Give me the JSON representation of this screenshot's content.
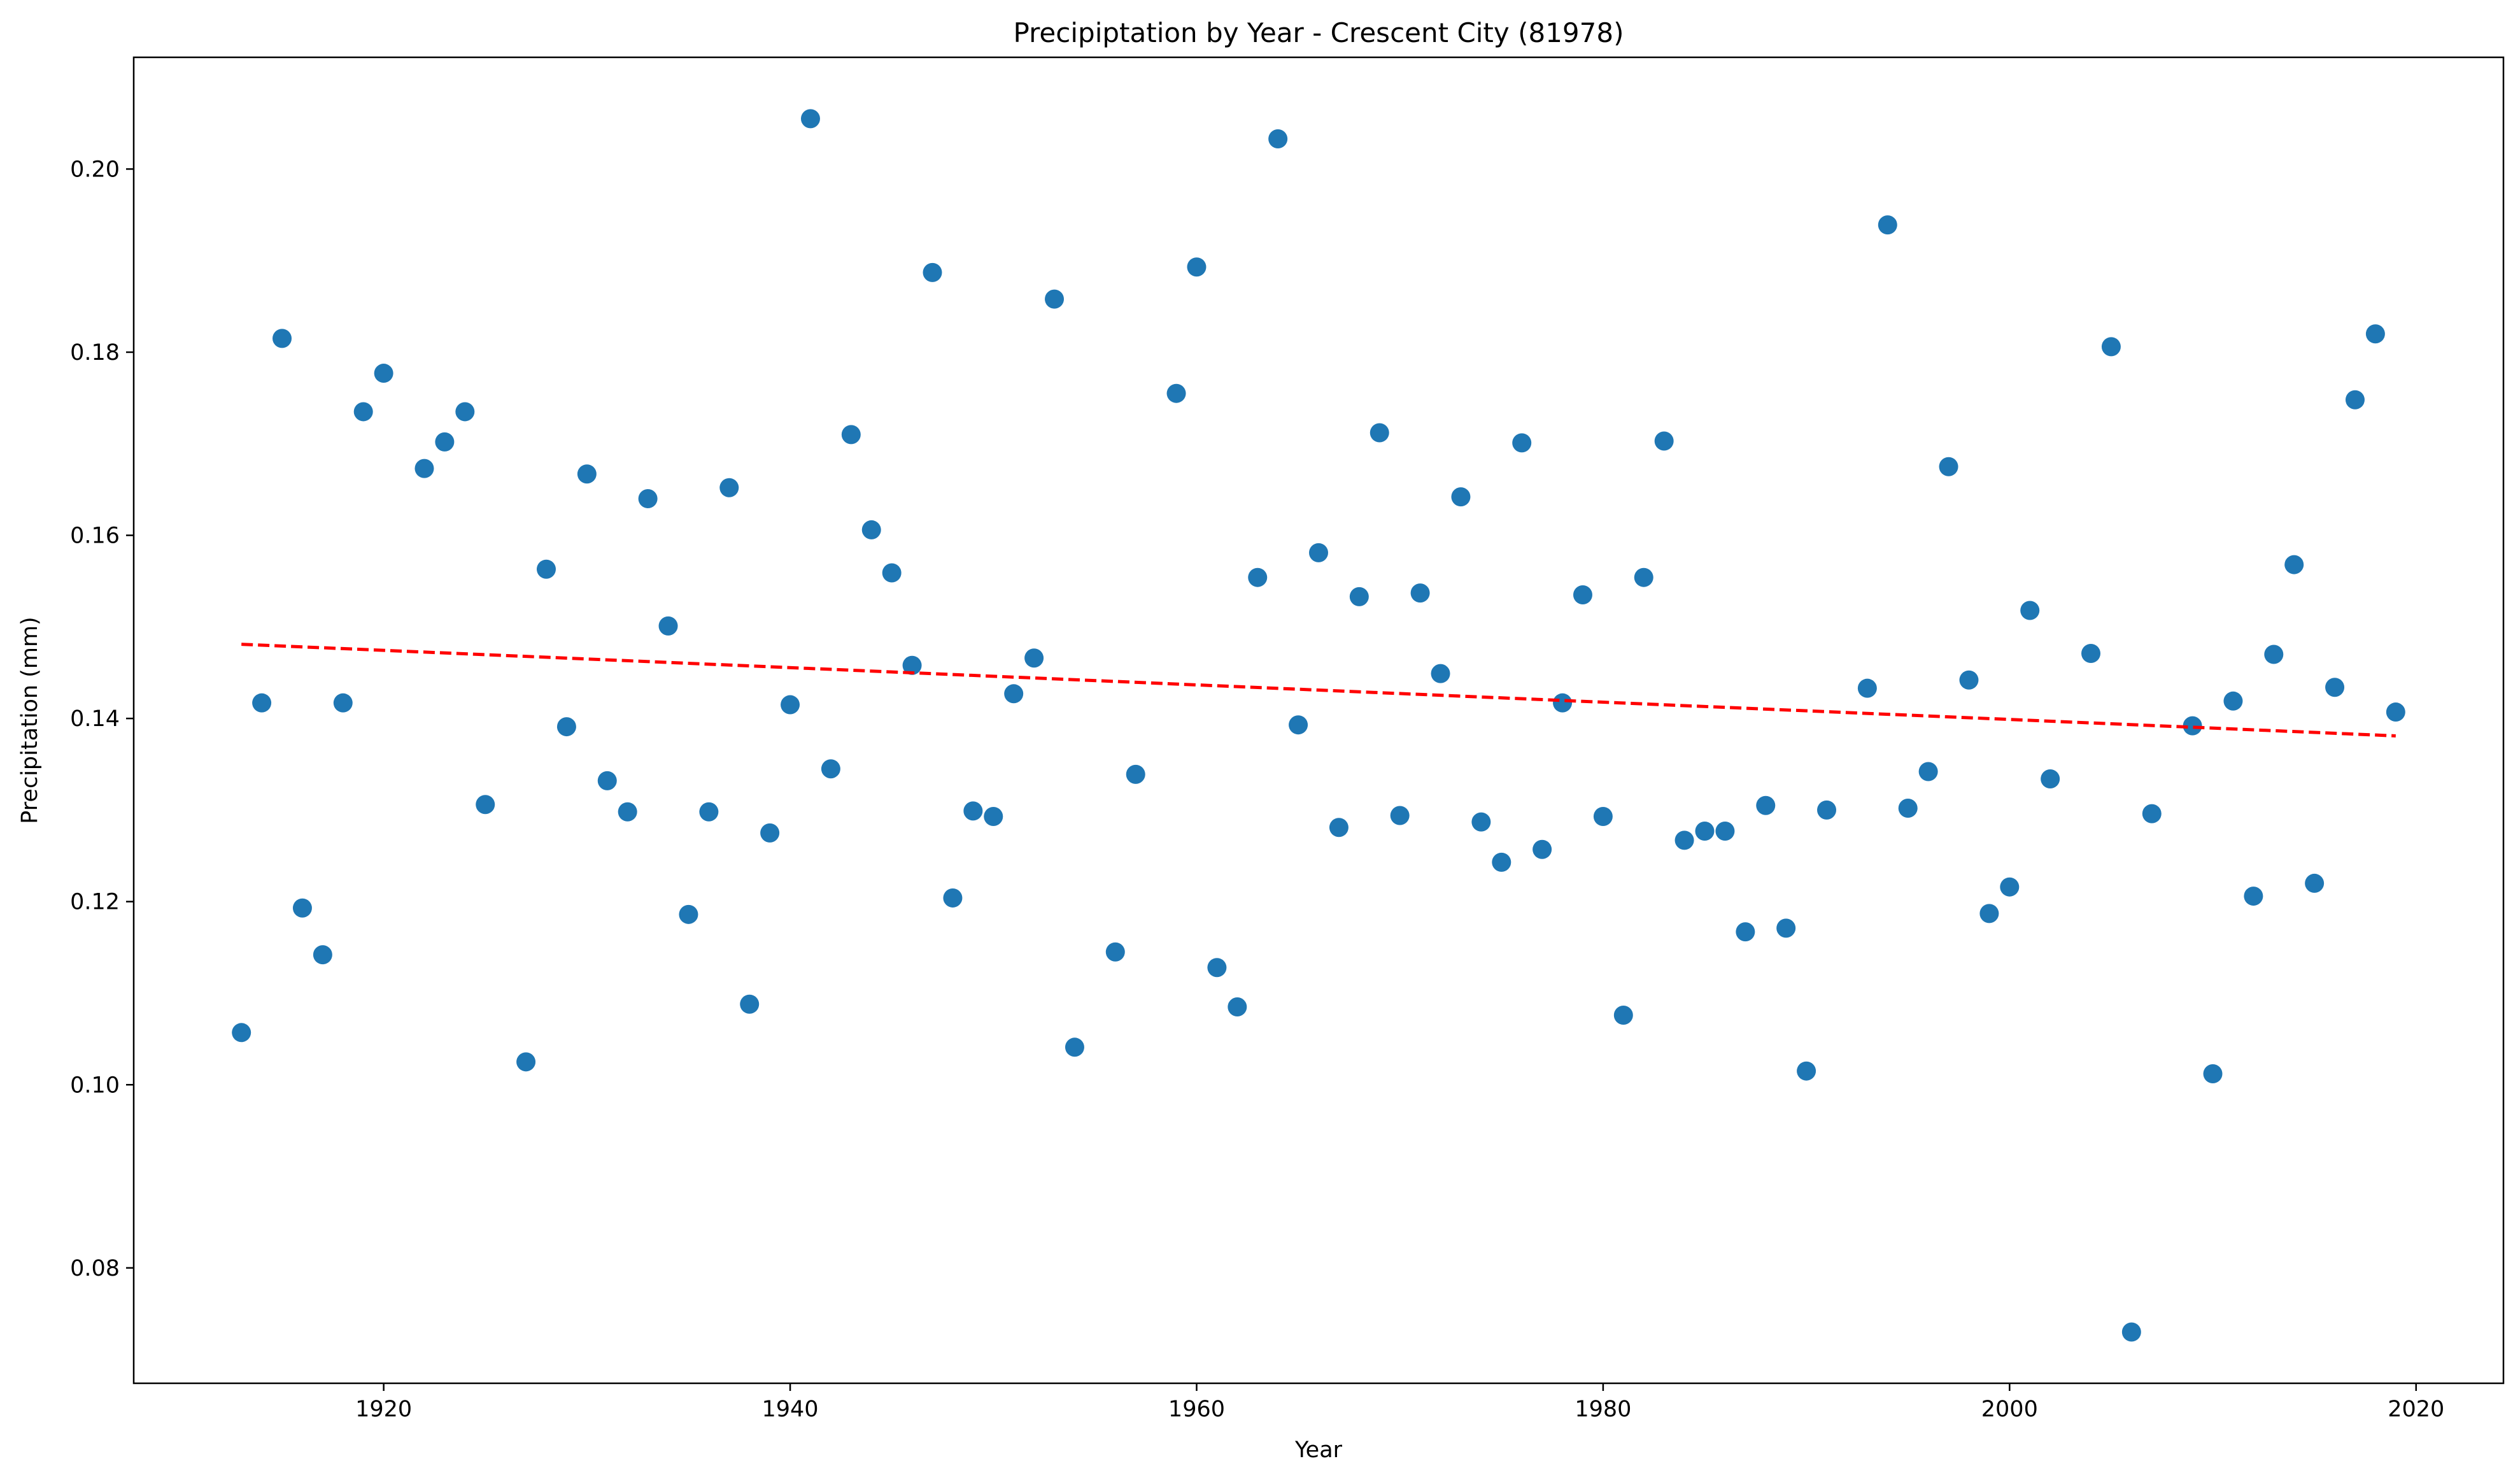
{
  "chart_data": {
    "type": "scatter",
    "title": "Precipiptation by Year - Crescent City (81978)",
    "xlabel": "Year",
    "ylabel": "Precipitation (mm)",
    "xlim": [
      1907.7,
      2024.3
    ],
    "ylim": [
      0.0674,
      0.2122
    ],
    "xticks": [
      1920,
      1940,
      1960,
      1980,
      2000,
      2020
    ],
    "xtick_labels": [
      "1920",
      "1940",
      "1960",
      "1980",
      "2000",
      "2020"
    ],
    "yticks": [
      0.08,
      0.1,
      0.12,
      0.14,
      0.16,
      0.18,
      0.2
    ],
    "ytick_labels": [
      "0.08",
      "0.10",
      "0.12",
      "0.14",
      "0.16",
      "0.18",
      "0.20"
    ],
    "grid": false,
    "colors": {
      "points": "#1f77b4",
      "trend": "#ff0000"
    },
    "series": [
      {
        "x": [
          1913,
          1914,
          1915,
          1916,
          1917,
          1918,
          1919,
          1920,
          1922,
          1923,
          1924,
          1925,
          1927,
          1928,
          1929,
          1930,
          1931,
          1932,
          1933,
          1934,
          1935,
          1936,
          1937,
          1938,
          1939,
          1940,
          1941,
          1942,
          1943,
          1944,
          1945,
          1946,
          1947,
          1948,
          1949,
          1950,
          1951,
          1952,
          1953,
          1954,
          1956,
          1957,
          1959,
          1960,
          1961,
          1962,
          1963,
          1964,
          1965,
          1966,
          1967,
          1968,
          1969,
          1970,
          1971,
          1972,
          1973,
          1974,
          1975,
          1976,
          1977,
          1978,
          1979,
          1980,
          1981,
          1982,
          1983,
          1984,
          1985,
          1986,
          1987,
          1988,
          1989,
          1990,
          1991,
          1993,
          1994,
          1995,
          1996,
          1997,
          1998,
          1999,
          2000,
          2001,
          2002,
          2004,
          2005,
          2006,
          2007,
          2009,
          2010,
          2011,
          2012,
          2013,
          2014,
          2015,
          2016,
          2017,
          2018,
          2019
        ],
        "y": [
          0.1057,
          0.1417,
          0.1815,
          0.1193,
          0.1142,
          0.1417,
          0.1735,
          0.1777,
          0.1673,
          0.1702,
          0.1735,
          0.1306,
          0.1025,
          0.1563,
          0.1391,
          0.1667,
          0.1332,
          0.1298,
          0.164,
          0.1501,
          0.1186,
          0.1298,
          0.1652,
          0.1088,
          0.1275,
          0.1415,
          0.2055,
          0.1345,
          0.171,
          0.1606,
          0.1559,
          0.1458,
          0.1887,
          0.1204,
          0.1299,
          0.1293,
          0.1427,
          0.1466,
          0.1858,
          0.1041,
          0.1145,
          0.1339,
          0.1755,
          0.1893,
          0.1128,
          0.1085,
          0.1554,
          0.2033,
          0.1393,
          0.1581,
          0.1281,
          0.1533,
          0.1712,
          0.1294,
          0.1537,
          0.1449,
          0.1642,
          0.1287,
          0.1243,
          0.1701,
          0.1257,
          0.1417,
          0.1535,
          0.1293,
          0.1076,
          0.1554,
          0.1703,
          0.1267,
          0.1277,
          0.1277,
          0.1167,
          0.1305,
          0.1171,
          0.1015,
          0.13,
          0.1433,
          0.1939,
          0.1302,
          0.1342,
          0.1675,
          0.1442,
          0.1187,
          0.1216,
          0.1518,
          0.1334,
          0.1471,
          0.1806,
          0.073,
          0.1296,
          0.1392,
          0.1012,
          0.1419,
          0.1206,
          0.147,
          0.1568,
          0.122,
          0.1434,
          0.1748,
          0.182,
          0.1407
        ]
      }
    ],
    "trendline": {
      "x": [
        1913,
        2019
      ],
      "y": [
        0.1481,
        0.1381
      ],
      "style": "dashed"
    }
  }
}
